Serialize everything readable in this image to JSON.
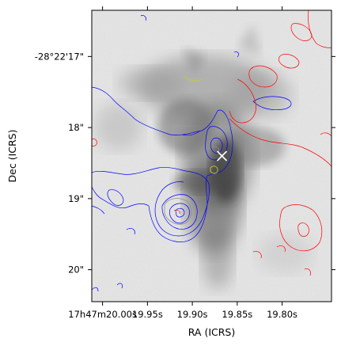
{
  "chart_data": {
    "type": "image-contour",
    "projection": "ICRS",
    "xlabel": "RA (ICRS)",
    "ylabel": "Dec (ICRS)",
    "x_ticks": [
      {
        "label": "17h47m20.00s",
        "value_s": 20.0
      },
      {
        "label": "19.95s",
        "value_s": 19.95
      },
      {
        "label": "19.90s",
        "value_s": 19.9
      },
      {
        "label": "19.85s",
        "value_s": 19.85
      },
      {
        "label": "19.80s",
        "value_s": 19.8
      }
    ],
    "y_ticks": [
      {
        "label": "-28°22'17\"",
        "value_arcsec": 17
      },
      {
        "label": "18\"",
        "value_arcsec": 18
      },
      {
        "label": "19\"",
        "value_arcsec": 19
      },
      {
        "label": "20\"",
        "value_arcsec": 20
      }
    ],
    "xlim_s": [
      20.012,
      19.745
    ],
    "ylim_arcsec": [
      16.35,
      20.45
    ],
    "background": "grayscale-emission-map",
    "contour_colors": {
      "blue": "#0000ff",
      "red": "#ff0000",
      "yellow": "#c8c832",
      "gray": "#888888"
    },
    "markers": [
      {
        "symbol": "x",
        "color": "#ffffff",
        "ra_s": 19.867,
        "dec_arcsec": 18.4
      }
    ],
    "grid": false
  }
}
